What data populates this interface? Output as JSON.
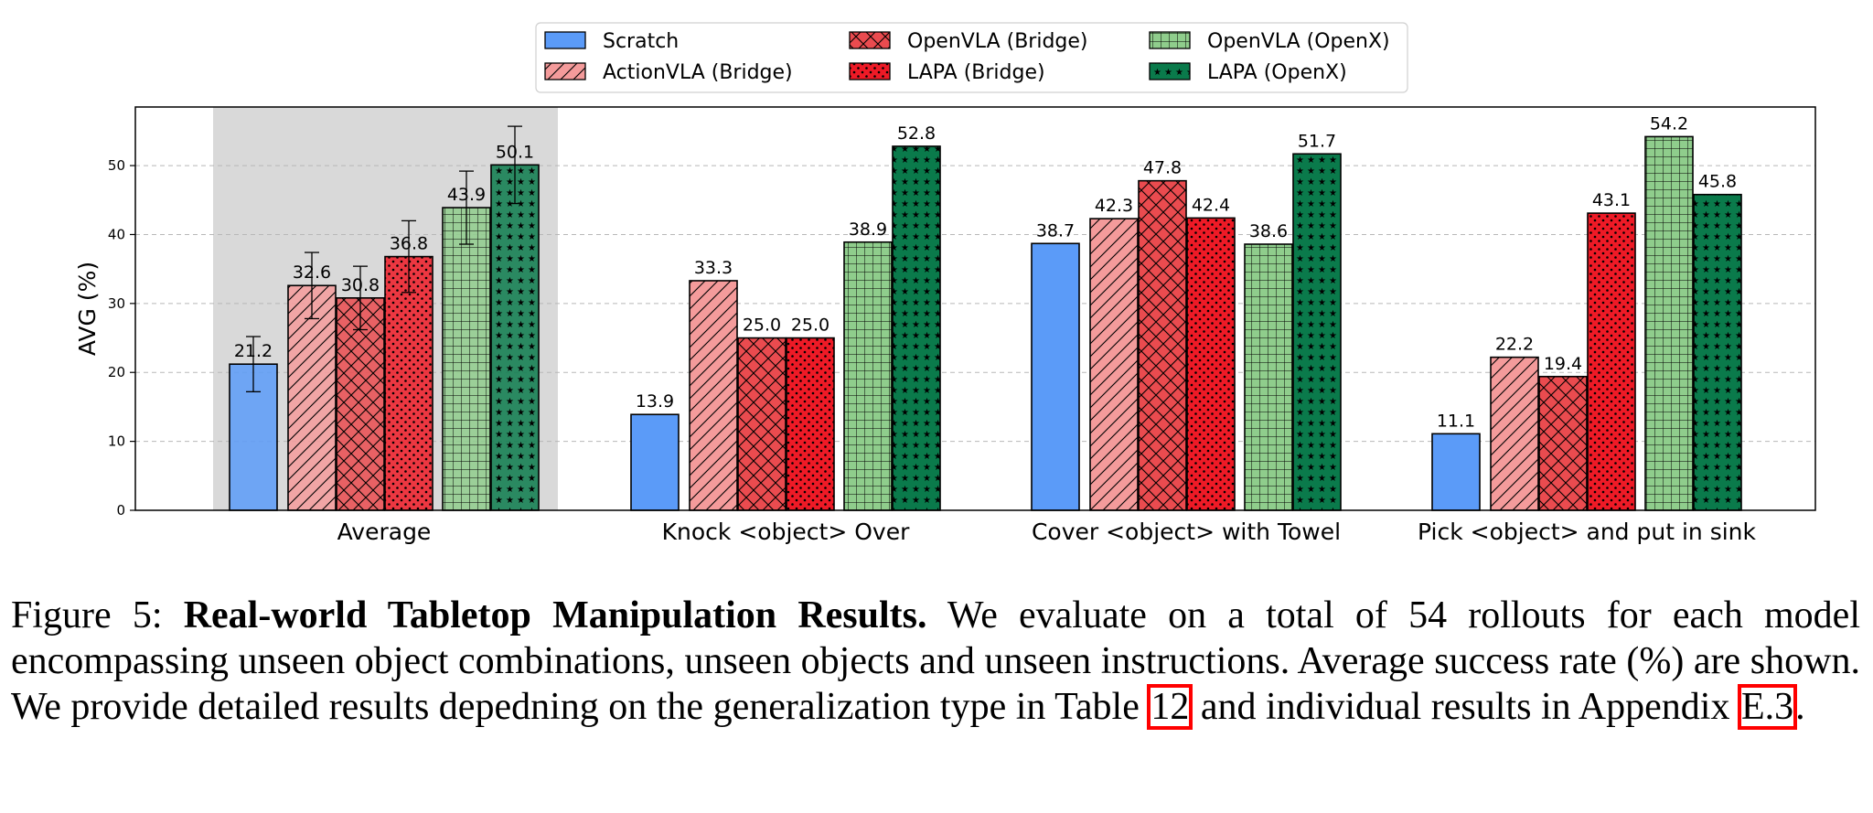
{
  "chart_data": {
    "type": "bar",
    "categories": [
      "Average",
      "Knock <object> Over",
      "Cover <object> with Towel",
      "Pick <object> and put in sink"
    ],
    "ylabel": "AVG (%)",
    "xlabel": "",
    "ylim": [
      0,
      58.5
    ],
    "yticks": [
      0,
      10,
      20,
      30,
      40,
      50
    ],
    "grid": "horizontal dashed",
    "legend_position": "top-center",
    "highlighted_category": "Average",
    "series": [
      {
        "name": "Scratch",
        "color": "#5b9bf8",
        "pattern": "none",
        "values": [
          21.2,
          13.9,
          38.7,
          11.1
        ],
        "error": [
          4.0,
          null,
          null,
          null
        ]
      },
      {
        "name": "ActionVLA (Bridge)",
        "color": "#f49b9b",
        "pattern": "diagonal",
        "values": [
          32.6,
          33.3,
          42.3,
          22.2
        ],
        "error": [
          4.8,
          null,
          null,
          null
        ]
      },
      {
        "name": "OpenVLA (Bridge)",
        "color": "#ea4b4f",
        "pattern": "crosshatch",
        "values": [
          30.8,
          25.0,
          47.8,
          19.4
        ],
        "error": [
          4.6,
          null,
          null,
          null
        ]
      },
      {
        "name": "LAPA (Bridge)",
        "color": "#ee1a26",
        "pattern": "dots",
        "values": [
          36.8,
          25.0,
          42.4,
          43.1
        ],
        "error": [
          5.2,
          null,
          null,
          null
        ]
      },
      {
        "name": "OpenVLA (OpenX)",
        "color": "#8fcd8c",
        "pattern": "grid",
        "values": [
          43.9,
          38.9,
          38.6,
          54.2
        ],
        "error": [
          5.3,
          null,
          null,
          null
        ]
      },
      {
        "name": "LAPA (OpenX)",
        "color": "#0a7a4b",
        "pattern": "stars",
        "values": [
          50.1,
          52.8,
          51.7,
          45.8
        ],
        "error": [
          5.6,
          null,
          null,
          null
        ]
      }
    ]
  },
  "caption": {
    "prefix": "Figure 5: ",
    "bold": "Real-world Tabletop Manipulation Results.",
    "text1": " We evaluate on a total of 54 rollouts for each model encompassing unseen object combinations, unseen objects and unseen instructions. Average success rate (%) are shown. We provide detailed results depedning on the generalization type in Table ",
    "ref1": "12",
    "text2": " and individual results in Appendix ",
    "ref2": "E.3",
    "text3": "."
  }
}
